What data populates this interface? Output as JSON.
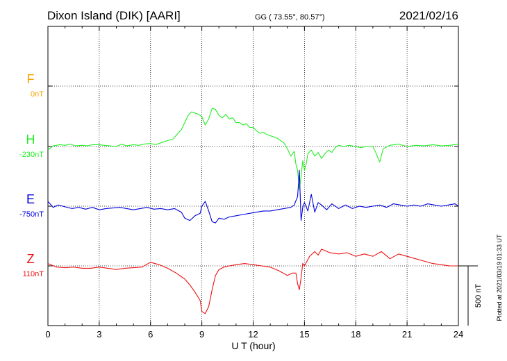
{
  "chart_data": {
    "type": "line",
    "title": "Dixon Island (DIK)  [AARI]",
    "coords": "GG ( 73.55°,  80.57°)",
    "date": "2021/02/16",
    "xlabel": "U T (hour)",
    "xlim": [
      0,
      24
    ],
    "xticks": [
      "0",
      "3",
      "6",
      "9",
      "12",
      "15",
      "18",
      "21",
      "24"
    ],
    "grid": true,
    "scale_bar_label": "500 nT",
    "scale_bar_nT": 500,
    "plotted_note": "Plotted at 2021/03/19 01:33 UT",
    "series": [
      {
        "name": "F",
        "baseline_label": "0nT",
        "color": "#f5a300",
        "x": [],
        "values": []
      },
      {
        "name": "H",
        "baseline_label": "-230nT",
        "color": "#22ee22",
        "x": [
          0,
          0.3,
          0.7,
          1.0,
          1.3,
          1.6,
          2.0,
          2.3,
          2.6,
          3.0,
          3.3,
          3.6,
          4.0,
          4.3,
          4.6,
          5.0,
          5.3,
          5.6,
          6.0,
          6.3,
          6.6,
          7.0,
          7.3,
          7.6,
          7.8,
          8.0,
          8.2,
          8.4,
          8.6,
          8.8,
          9.0,
          9.2,
          9.4,
          9.6,
          9.8,
          10.0,
          10.2,
          10.4,
          10.6,
          10.8,
          11.0,
          11.2,
          11.4,
          11.6,
          11.8,
          12.0,
          12.2,
          12.4,
          12.6,
          12.8,
          13.0,
          13.2,
          13.4,
          13.6,
          13.8,
          14.0,
          14.2,
          14.4,
          14.5,
          14.6,
          14.7,
          14.8,
          14.9,
          15.0,
          15.1,
          15.2,
          15.4,
          15.6,
          15.8,
          16.0,
          16.2,
          16.4,
          16.6,
          16.8,
          17.0,
          17.3,
          17.6,
          18.0,
          18.3,
          18.6,
          19.0,
          19.2,
          19.4,
          19.6,
          20.0,
          20.5,
          21.0,
          21.5,
          22.0,
          22.5,
          23.0,
          23.5,
          24.0
        ],
        "values": [
          -30,
          5,
          15,
          10,
          20,
          5,
          10,
          5,
          15,
          15,
          10,
          5,
          0,
          20,
          5,
          15,
          10,
          20,
          25,
          15,
          30,
          50,
          60,
          110,
          140,
          200,
          260,
          290,
          280,
          270,
          250,
          180,
          230,
          320,
          310,
          260,
          240,
          270,
          230,
          240,
          200,
          200,
          180,
          190,
          160,
          160,
          130,
          110,
          120,
          100,
          90,
          80,
          70,
          50,
          30,
          -20,
          -80,
          -40,
          -150,
          -200,
          -360,
          -250,
          -120,
          -200,
          -150,
          -60,
          -30,
          -80,
          -50,
          -100,
          -60,
          -30,
          -50,
          -10,
          10,
          0,
          10,
          0,
          -10,
          0,
          0,
          -60,
          -130,
          -20,
          10,
          20,
          0,
          10,
          5,
          15,
          5,
          10,
          20
        ]
      },
      {
        "name": "E",
        "baseline_label": "-750nT",
        "color": "#0000dd",
        "x": [
          0,
          0.3,
          0.6,
          1.0,
          1.4,
          1.8,
          2.2,
          2.6,
          3.0,
          3.4,
          3.8,
          4.2,
          4.6,
          5.0,
          5.4,
          5.8,
          6.2,
          6.6,
          7.0,
          7.4,
          7.8,
          8.0,
          8.3,
          8.6,
          8.9,
          9.0,
          9.2,
          9.4,
          9.6,
          9.8,
          10.0,
          10.3,
          10.6,
          11.0,
          11.4,
          11.8,
          12.2,
          12.6,
          13.0,
          13.4,
          13.8,
          14.2,
          14.4,
          14.6,
          14.7,
          14.8,
          14.9,
          15.0,
          15.2,
          15.4,
          15.6,
          15.8,
          16.0,
          16.3,
          16.6,
          17.0,
          17.4,
          17.8,
          18.2,
          18.6,
          19.0,
          19.4,
          19.8,
          20.2,
          20.6,
          21.0,
          21.4,
          21.8,
          22.2,
          22.6,
          23.0,
          23.4,
          23.8,
          24.0
        ],
        "values": [
          40,
          -10,
          10,
          -5,
          -20,
          -10,
          -25,
          -10,
          -30,
          -20,
          -15,
          -10,
          -20,
          -30,
          -20,
          -10,
          -25,
          -20,
          -30,
          -20,
          -50,
          -100,
          -120,
          -80,
          -60,
          0,
          40,
          -40,
          -130,
          -140,
          -100,
          -110,
          -90,
          -80,
          -70,
          -60,
          -50,
          -40,
          -40,
          -30,
          -20,
          -10,
          10,
          80,
          300,
          -120,
          -10,
          30,
          -40,
          100,
          -50,
          30,
          10,
          -30,
          20,
          -20,
          10,
          -20,
          0,
          -10,
          0,
          10,
          -10,
          20,
          10,
          0,
          10,
          0,
          20,
          10,
          0,
          10,
          20,
          0
        ]
      },
      {
        "name": "Z",
        "baseline_label": "110nT",
        "color": "#ee1111",
        "x": [
          0,
          0.5,
          1.0,
          1.5,
          2.0,
          2.5,
          3.0,
          3.5,
          4.0,
          4.5,
          5.0,
          5.5,
          6.0,
          6.5,
          7.0,
          7.5,
          7.8,
          8.0,
          8.3,
          8.6,
          8.9,
          9.0,
          9.2,
          9.4,
          9.6,
          9.8,
          10.0,
          10.3,
          10.6,
          11.0,
          11.5,
          12.0,
          12.5,
          13.0,
          13.5,
          14.0,
          14.3,
          14.5,
          14.6,
          14.7,
          14.8,
          14.9,
          15.0,
          15.3,
          15.6,
          15.8,
          16.0,
          16.5,
          17.0,
          17.5,
          18.0,
          18.5,
          19.0,
          19.5,
          20.0,
          20.5,
          21.0,
          21.5,
          22.0,
          22.5,
          23.0,
          23.5,
          24.0
        ],
        "values": [
          20,
          -10,
          -15,
          -10,
          -20,
          -20,
          -10,
          -20,
          -30,
          -20,
          -15,
          -10,
          30,
          10,
          -20,
          -60,
          -90,
          -110,
          -160,
          -220,
          -290,
          -380,
          -400,
          -340,
          -200,
          -80,
          -30,
          -10,
          0,
          10,
          20,
          10,
          0,
          -10,
          -40,
          -80,
          -60,
          -60,
          -150,
          -200,
          -100,
          20,
          0,
          80,
          120,
          90,
          140,
          110,
          100,
          110,
          80,
          100,
          80,
          120,
          60,
          100,
          80,
          60,
          40,
          20,
          10,
          0,
          0
        ]
      }
    ]
  }
}
